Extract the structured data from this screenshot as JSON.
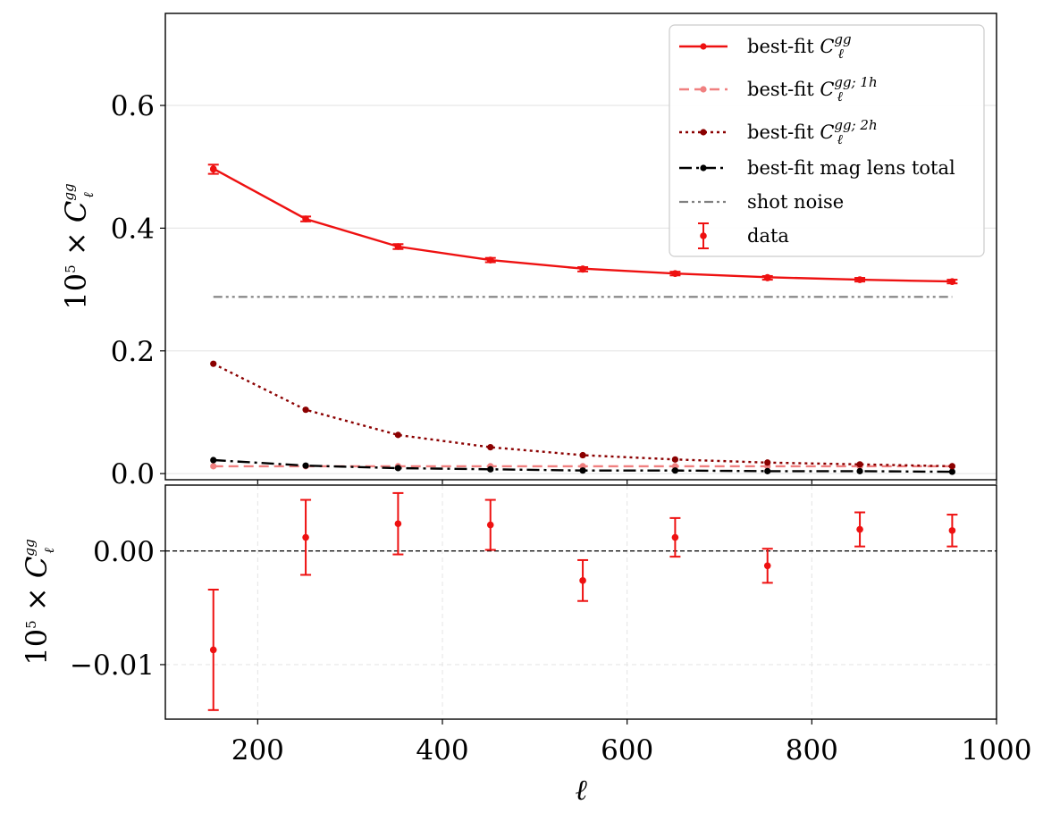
{
  "chart_data": [
    {
      "type": "line",
      "panel": "top",
      "ylabel_parts": {
        "prefix": "10",
        "exp": "5",
        "times": " × ",
        "sym": "C",
        "sup": "gg",
        "sub": "ℓ"
      },
      "xlim": [
        100,
        1000
      ],
      "ylim": [
        -0.01,
        0.75
      ],
      "yticks": [
        0.0,
        0.2,
        0.4,
        0.6
      ],
      "ytick_labels": [
        "0.0",
        "0.2",
        "0.4",
        "0.6"
      ],
      "grid": true,
      "legend_position": "top-right",
      "x": [
        152,
        252,
        352,
        452,
        552,
        652,
        752,
        852,
        952
      ],
      "series": [
        {
          "key": "total",
          "name": "best-fit C_ℓ^{gg}",
          "legend_parts": {
            "text": "best-fit ",
            "sym": "C",
            "sup": "gg",
            "sub": "ℓ"
          },
          "color": "#ee1111",
          "style": "solid",
          "values": [
            0.497,
            0.415,
            0.37,
            0.348,
            0.334,
            0.326,
            0.32,
            0.316,
            0.313
          ]
        },
        {
          "key": "one_halo",
          "name": "best-fit C_ℓ^{gg; 1h}",
          "legend_parts": {
            "text": "best-fit ",
            "sym": "C",
            "sup": "gg; 1h",
            "sub": "ℓ"
          },
          "color": "#f08080",
          "style": "dashed",
          "values": [
            0.012,
            0.012,
            0.012,
            0.012,
            0.012,
            0.012,
            0.012,
            0.012,
            0.012
          ]
        },
        {
          "key": "two_halo",
          "name": "best-fit C_ℓ^{gg; 2h}",
          "legend_parts": {
            "text": "best-fit ",
            "sym": "C",
            "sup": "gg; 2h",
            "sub": "ℓ"
          },
          "color": "#8b0000",
          "style": "dotted",
          "values": [
            0.179,
            0.104,
            0.063,
            0.043,
            0.03,
            0.023,
            0.018,
            0.015,
            0.012
          ]
        },
        {
          "key": "mag_lens",
          "name": "best-fit mag lens total",
          "legend_parts": {
            "text": "best-fit mag lens total"
          },
          "color": "#000000",
          "style": "dashdot",
          "values": [
            0.022,
            0.013,
            0.009,
            0.007,
            0.005,
            0.005,
            0.004,
            0.004,
            0.003
          ]
        }
      ],
      "shot_noise": {
        "name": "shot noise",
        "color": "#808080",
        "style": "dashdotdot",
        "x": [
          152,
          952
        ],
        "value": 0.288
      },
      "data": {
        "name": "data",
        "color": "#ee1111",
        "values": [
          0.496,
          0.415,
          0.37,
          0.348,
          0.333,
          0.326,
          0.319,
          0.316,
          0.313
        ],
        "errors": [
          0.0075,
          0.004,
          0.004,
          0.0035,
          0.0035,
          0.003,
          0.003,
          0.003,
          0.003
        ]
      }
    },
    {
      "type": "scatter",
      "panel": "bottom",
      "ylabel_parts": {
        "prefix": "10",
        "exp": "5",
        "times": " × ",
        "sym": "C",
        "sup": "gg",
        "sub": "ℓ"
      },
      "xlabel": "ℓ",
      "xlim": [
        100,
        1000
      ],
      "ylim": [
        -0.0148,
        0.0058
      ],
      "xticks": [
        200,
        400,
        600,
        800,
        1000
      ],
      "xtick_labels": [
        "200",
        "400",
        "600",
        "800",
        "1000"
      ],
      "yticks": [
        0.0,
        -0.01
      ],
      "ytick_labels": [
        "0.00",
        "−0.01"
      ],
      "grid": true,
      "reference_line": 0.0,
      "residuals": {
        "color": "#ee1111",
        "x": [
          152,
          252,
          352,
          452,
          552,
          652,
          752,
          852,
          952
        ],
        "values": [
          -0.0087,
          0.0012,
          0.0024,
          0.0023,
          -0.0026,
          0.0012,
          -0.0013,
          0.0019,
          0.0018
        ],
        "errors": [
          0.0053,
          0.0033,
          0.0027,
          0.0022,
          0.0018,
          0.0017,
          0.0015,
          0.0015,
          0.0014
        ]
      }
    }
  ]
}
